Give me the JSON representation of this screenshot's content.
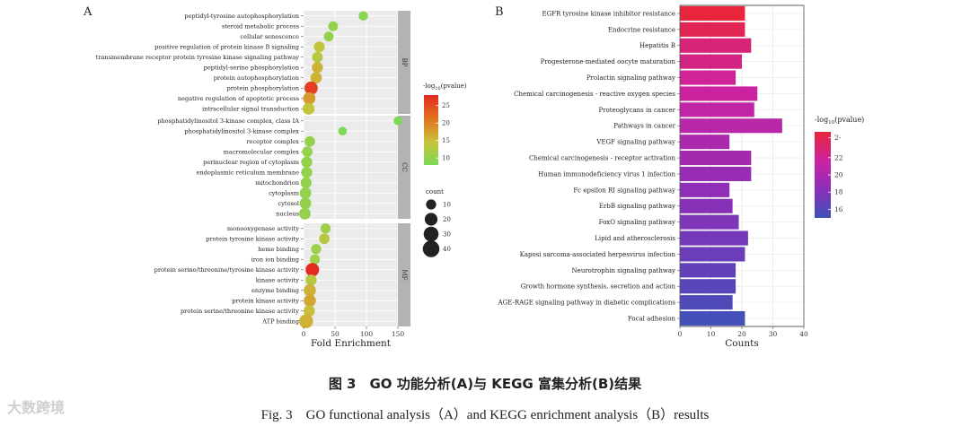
{
  "chart_data": [
    {
      "type": "scatter",
      "panel_label": "A",
      "title": "",
      "xlabel": "Fold Enrichment",
      "ylabel": "",
      "xlim": [
        0,
        150
      ],
      "x_ticks": [
        0,
        50,
        100,
        150
      ],
      "grid": true,
      "legend": {
        "color_title": "-log10(pvalue)",
        "color_ticks": [
          10,
          15,
          20,
          25
        ],
        "color_range": [
          8,
          28
        ],
        "size_title": "count",
        "size_ticks": [
          10,
          20,
          30,
          40
        ]
      },
      "facets": [
        {
          "name": "BP",
          "terms": [
            {
              "term": "peptidyl-tyrosine autophosphorylation",
              "x": 95,
              "count": 8,
              "logp": 9
            },
            {
              "term": "steroid metabolic process",
              "x": 47,
              "count": 9,
              "logp": 10
            },
            {
              "term": "cellular senescence",
              "x": 40,
              "count": 9,
              "logp": 10
            },
            {
              "term": "positive regulation of protein kinase B signaling",
              "x": 25,
              "count": 12,
              "logp": 14
            },
            {
              "term": "transmembrane receptor protein tyrosine kinase signaling pathway",
              "x": 22,
              "count": 12,
              "logp": 13
            },
            {
              "term": "peptidyl-serine phosphorylation",
              "x": 22,
              "count": 13,
              "logp": 16
            },
            {
              "term": "protein autophosphorylation",
              "x": 20,
              "count": 14,
              "logp": 16
            },
            {
              "term": "protein phosphorylation",
              "x": 12,
              "count": 22,
              "logp": 26
            },
            {
              "term": "negative regulation of apoptotic process",
              "x": 9,
              "count": 18,
              "logp": 18
            },
            {
              "term": "intracellular signal transduction",
              "x": 8,
              "count": 16,
              "logp": 14
            }
          ]
        },
        {
          "name": "CC",
          "terms": [
            {
              "term": "phosphatidylinositol 3-kinase complex, class IA",
              "x": 150,
              "count": 6,
              "logp": 8
            },
            {
              "term": "phosphatidylinositol 3-kinase complex",
              "x": 62,
              "count": 6,
              "logp": 8
            },
            {
              "term": "receptor complex",
              "x": 10,
              "count": 11,
              "logp": 10
            },
            {
              "term": "macromolecular complex",
              "x": 6,
              "count": 11,
              "logp": 10
            },
            {
              "term": "perinuclear region of cytoplasm",
              "x": 5,
              "count": 13,
              "logp": 10
            },
            {
              "term": "endoplasmic reticulum membrane",
              "x": 5,
              "count": 13,
              "logp": 10
            },
            {
              "term": "mitochondrion",
              "x": 4,
              "count": 13,
              "logp": 10
            },
            {
              "term": "cytoplasm",
              "x": 3,
              "count": 15,
              "logp": 10
            },
            {
              "term": "cytosol",
              "x": 3,
              "count": 15,
              "logp": 10
            },
            {
              "term": "nucleus",
              "x": 2,
              "count": 15,
              "logp": 10
            }
          ]
        },
        {
          "name": "MF",
          "terms": [
            {
              "term": "monooxygenase activity",
              "x": 35,
              "count": 10,
              "logp": 11
            },
            {
              "term": "protein tyrosine kinase activity",
              "x": 33,
              "count": 11,
              "logp": 13
            },
            {
              "term": "heme binding",
              "x": 20,
              "count": 10,
              "logp": 11
            },
            {
              "term": "iron ion binding",
              "x": 18,
              "count": 10,
              "logp": 11
            },
            {
              "term": "protein serine/threonine/tyrosine kinase activity",
              "x": 14,
              "count": 23,
              "logp": 28
            },
            {
              "term": "kinase activity",
              "x": 12,
              "count": 13,
              "logp": 13
            },
            {
              "term": "enzyme binding",
              "x": 10,
              "count": 17,
              "logp": 16
            },
            {
              "term": "protein kinase activity",
              "x": 10,
              "count": 17,
              "logp": 17
            },
            {
              "term": "protein serine/threonine kinase activity",
              "x": 9,
              "count": 14,
              "logp": 15
            },
            {
              "term": "ATP binding",
              "x": 4,
              "count": 25,
              "logp": 16
            }
          ]
        }
      ]
    },
    {
      "type": "bar",
      "orientation": "horizontal",
      "panel_label": "B",
      "title": "",
      "xlabel": "Counts",
      "ylabel": "",
      "xlim": [
        0,
        40
      ],
      "x_ticks": [
        0,
        10,
        20,
        30,
        40
      ],
      "grid": true,
      "legend": {
        "color_title": "-log10(pvalue)",
        "color_ticks": [
          "16",
          "18",
          "20",
          "22",
          "2-"
        ],
        "color_range": [
          15,
          25
        ]
      },
      "categories": [
        "EGFR tyrosine kinase inhibitor resistance",
        "Endocrine resistance",
        "Hepatitis B",
        "Progesterone-mediated oocyte maturation",
        "Prolactin signaling pathway",
        "Chemical carcinogenesis - reactive oxygen species",
        "Proteoglycans in cancer",
        "Pathways in cancer",
        "VEGF signaling pathway",
        "Chemical carcinogenesis - receptor activation",
        "Human immunodeficiency virus 1 infection",
        "Fc epsilon RI signaling pathway",
        "ErbB signaling pathway",
        "FoxO signaling pathway",
        "Lipid and atherosclerosis",
        "Kaposi sarcoma-associated herpesvirus infection",
        "Neurotrophin signaling pathway",
        "Growth hormone synthesis, secretion and action",
        "AGE-RAGE signaling pathway in diabetic complications",
        "Focal adhesion"
      ],
      "values": [
        21,
        21,
        23,
        20,
        18,
        25,
        24,
        33,
        16,
        23,
        23,
        16,
        17,
        19,
        22,
        21,
        18,
        18,
        17,
        21
      ],
      "logp": [
        25,
        24.2,
        23,
        22.6,
        22,
        21.6,
        21,
        20.6,
        20,
        19.6,
        19,
        18.6,
        18.2,
        17.8,
        17.4,
        17,
        16.6,
        16.2,
        15.8,
        15.2
      ]
    }
  ],
  "caption": {
    "zh": "图 3　GO 功能分析(A)与 KEGG 富集分析(B)结果",
    "en": "Fig. 3　GO functional analysis（A）and KEGG enrichment analysis（B）results"
  },
  "watermark": "大数跨境"
}
